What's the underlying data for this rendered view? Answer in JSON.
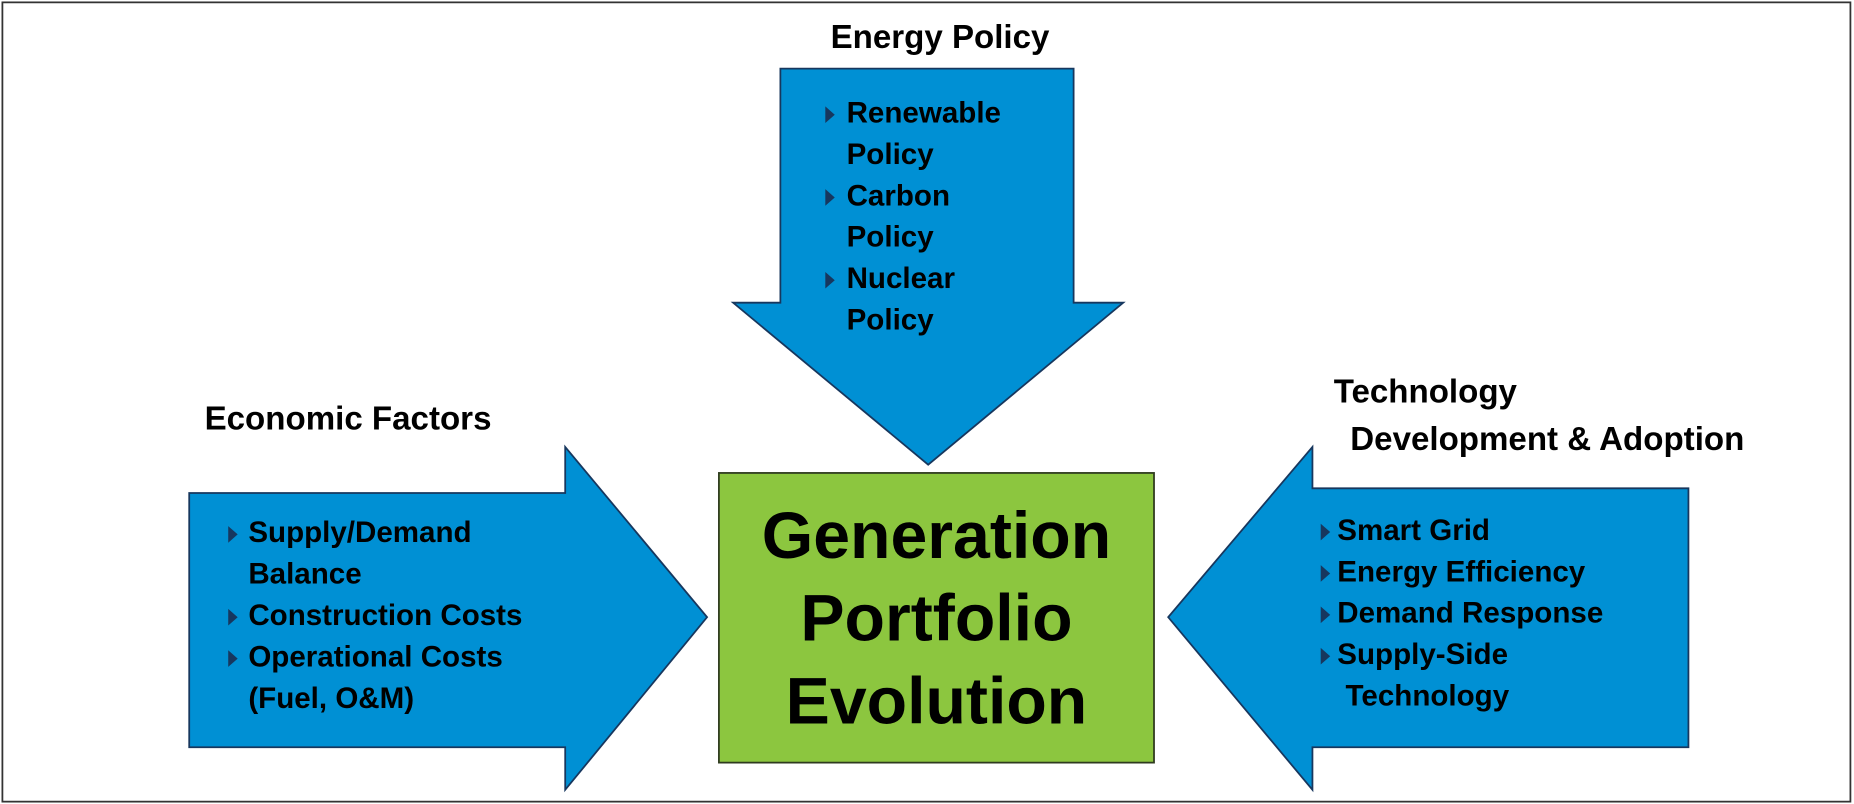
{
  "center": {
    "lines": [
      "Generation",
      "Portfolio",
      "Evolution"
    ]
  },
  "arrows": [
    {
      "title": [
        "Energy Policy"
      ],
      "items": [
        [
          "Renewable",
          "Policy"
        ],
        [
          "Carbon",
          "Policy"
        ],
        [
          "Nuclear",
          "Policy"
        ]
      ]
    },
    {
      "title": [
        "Economic Factors"
      ],
      "items": [
        [
          "Supply/Demand",
          "Balance"
        ],
        [
          "Construction Costs"
        ],
        [
          "Operational Costs",
          "(Fuel, O&M)"
        ]
      ]
    },
    {
      "title": [
        "Technology",
        "Development & Adoption"
      ],
      "items": [
        [
          "Smart Grid"
        ],
        [
          "Energy Efficiency"
        ],
        [
          "Demand Response"
        ],
        [
          "Supply-Side",
          "Technology"
        ]
      ]
    }
  ]
}
